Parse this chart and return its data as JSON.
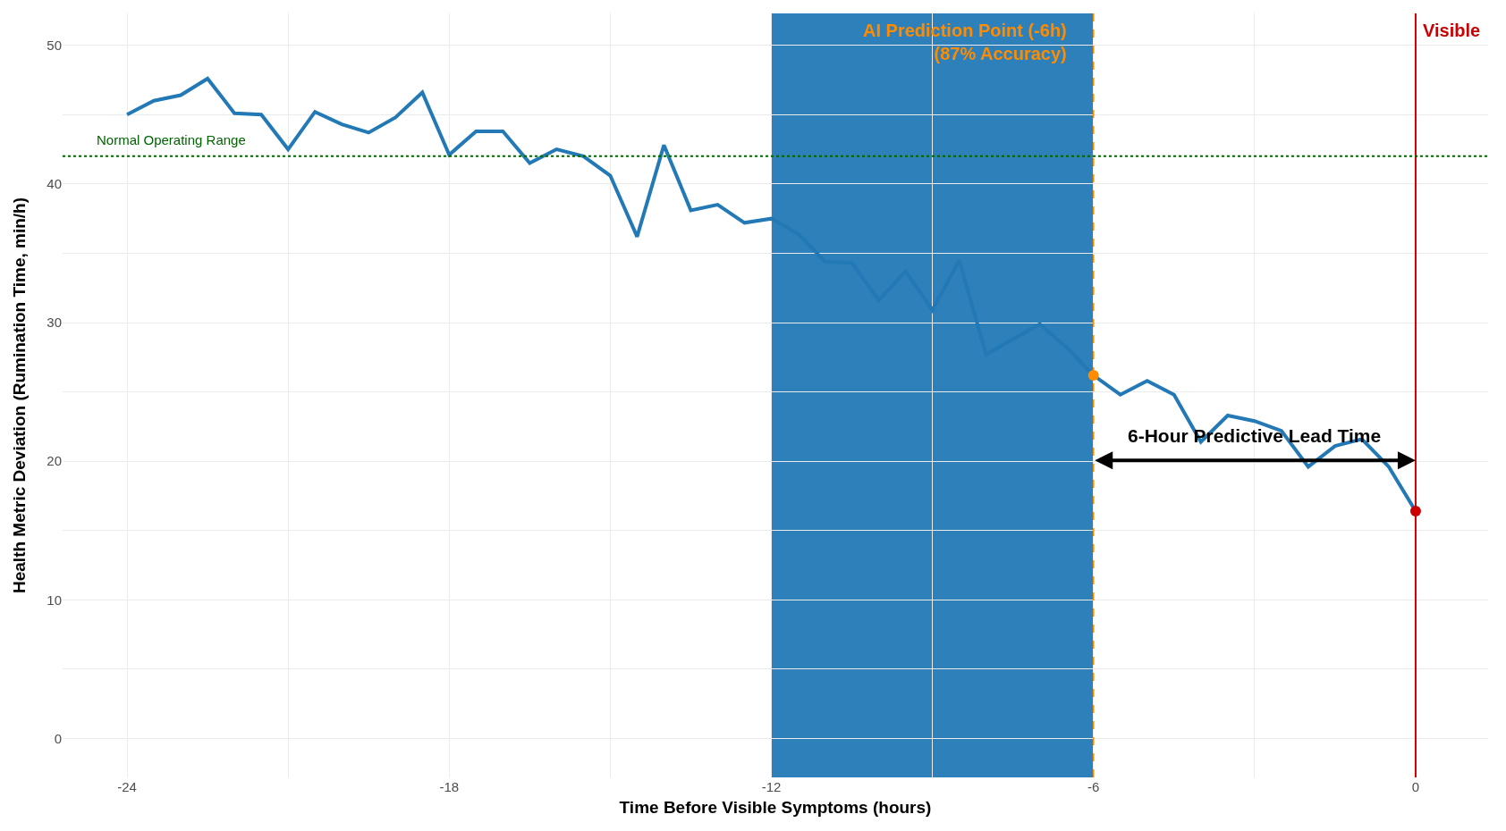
{
  "chart_data": {
    "type": "line",
    "xlabel": "Time Before Visible Symptoms (hours)",
    "ylabel": "Health Metric Deviation (Rumination Time, min/h)",
    "x": [
      -24,
      -23.5,
      -23,
      -22.5,
      -22,
      -21.5,
      -21,
      -20.5,
      -20,
      -19.5,
      -19,
      -18.5,
      -18,
      -17.5,
      -17,
      -16.5,
      -16,
      -15.5,
      -15,
      -14.5,
      -14,
      -13.5,
      -13,
      -12.5,
      -12,
      -11.5,
      -11,
      -10.5,
      -10,
      -9.5,
      -9,
      -8.5,
      -8,
      -7.5,
      -7,
      -6.5,
      -6,
      -5.5,
      -5,
      -4.5,
      -4,
      -3.5,
      -3,
      -2.5,
      -2,
      -1.5,
      -1,
      -0.5,
      0
    ],
    "series": [
      {
        "color": "#2279b5",
        "values": [
          45.0,
          46.0,
          46.4,
          47.6,
          45.1,
          45.0,
          42.5,
          45.2,
          44.3,
          43.7,
          44.8,
          46.6,
          42.1,
          43.8,
          43.8,
          41.5,
          42.5,
          42.0,
          40.6,
          36.2,
          42.8,
          38.1,
          38.5,
          37.2,
          37.5,
          36.4,
          34.4,
          34.3,
          31.6,
          33.7,
          30.9,
          34.5,
          27.7,
          28.8,
          29.9,
          28.2,
          26.2,
          24.8,
          25.8,
          24.8,
          21.4,
          23.3,
          22.9,
          22.2,
          19.6,
          21.1,
          21.6,
          19.6,
          16.4
        ]
      },
      {
        "type": "scatter",
        "x": [
          -6,
          0
        ],
        "colors": [
          "#ff8c00",
          "#cc0000"
        ],
        "marker": "circle",
        "values": [
          26.2,
          16.4
        ]
      }
    ],
    "xlim": [
      -25.2,
      1.35
    ],
    "ylim": [
      -2.8,
      52.3
    ],
    "xticks": [
      -24,
      {
        "value": -21,
        "label": null
      },
      -18,
      {
        "value": -15,
        "label": null
      },
      -12,
      {
        "value": -9,
        "label": null
      },
      -6,
      {
        "value": -3,
        "label": null
      },
      0
    ],
    "yticks": [
      0,
      {
        "value": 5,
        "label": null
      },
      10,
      {
        "value": 15,
        "label": null
      },
      20,
      {
        "value": 25,
        "label": null
      },
      30,
      {
        "value": 35,
        "label": null
      },
      40,
      {
        "value": 45,
        "label": null
      },
      50
    ],
    "grid": true,
    "bands": [
      {
        "axis": "x",
        "from": -12,
        "to": -6,
        "color": "#2279b5"
      }
    ],
    "ref_lines": [
      {
        "axis": "x",
        "value": -6,
        "label": "AI Prediction Point (-6h)\n(87% Accuracy)",
        "color": "#ff8c00",
        "line_style": "dashed"
      },
      {
        "axis": "x",
        "value": 0,
        "label": "Visible",
        "color": "#cc0000",
        "line_style": "solid"
      },
      {
        "axis": "y",
        "value": 42,
        "label": "Normal Operating Range",
        "color": "#006400",
        "line_style": "dotted"
      }
    ],
    "annotations": [
      "6-Hour Predictive Lead Time"
    ]
  }
}
